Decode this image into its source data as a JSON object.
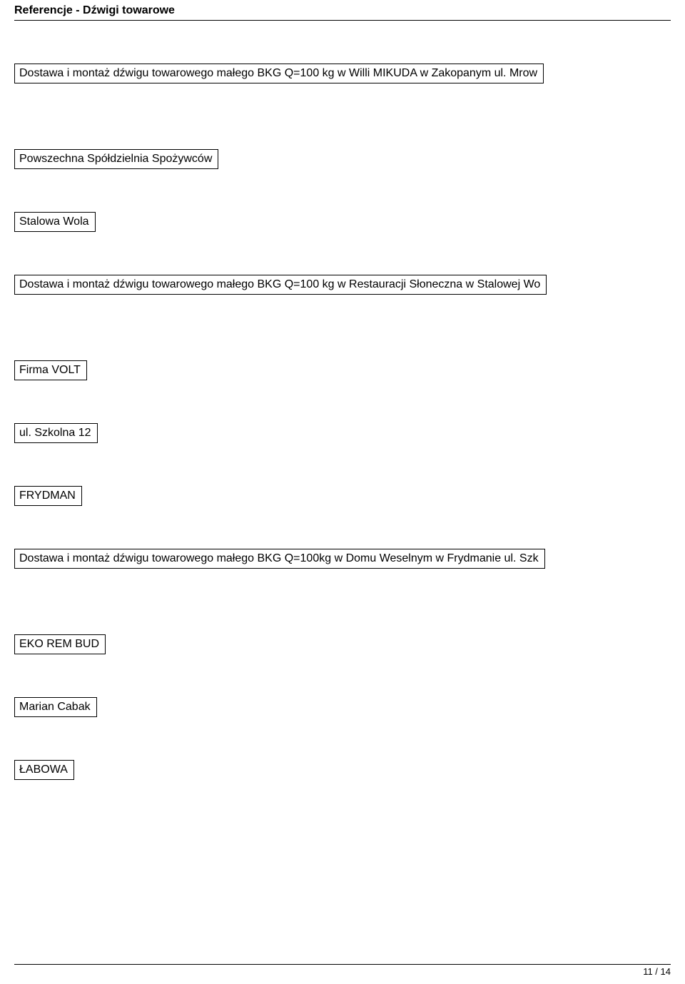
{
  "header": {
    "title": "Referencje - Dźwigi towarowe"
  },
  "blocks": {
    "line1": "Dostawa i montaż dźwigu towarowego małego  BKG Q=100 kg w Willi MIKUDA w Zakopanym ul. Mrow",
    "line2": "Powszechna   Spółdzielnia Spożywców",
    "line3": "Stalowa Wola",
    "line4": "Dostawa i montaż dźwigu towarowego małego  BKG Q=100 kg w Restauracji Słoneczna w Stalowej Wo",
    "line5": "Firma VOLT",
    "line6": "ul. Szkolna 12",
    "line7": "FRYDMAN",
    "line8": "Dostawa i montaż dźwigu towarowego małego  BKG Q=100kg w Domu Weselnym w Frydmanie ul. Szk",
    "line9": "EKO REM BUD",
    "line10": "Marian Cabak",
    "line11": "ŁABOWA"
  },
  "footer": {
    "page": "11 / 14"
  }
}
